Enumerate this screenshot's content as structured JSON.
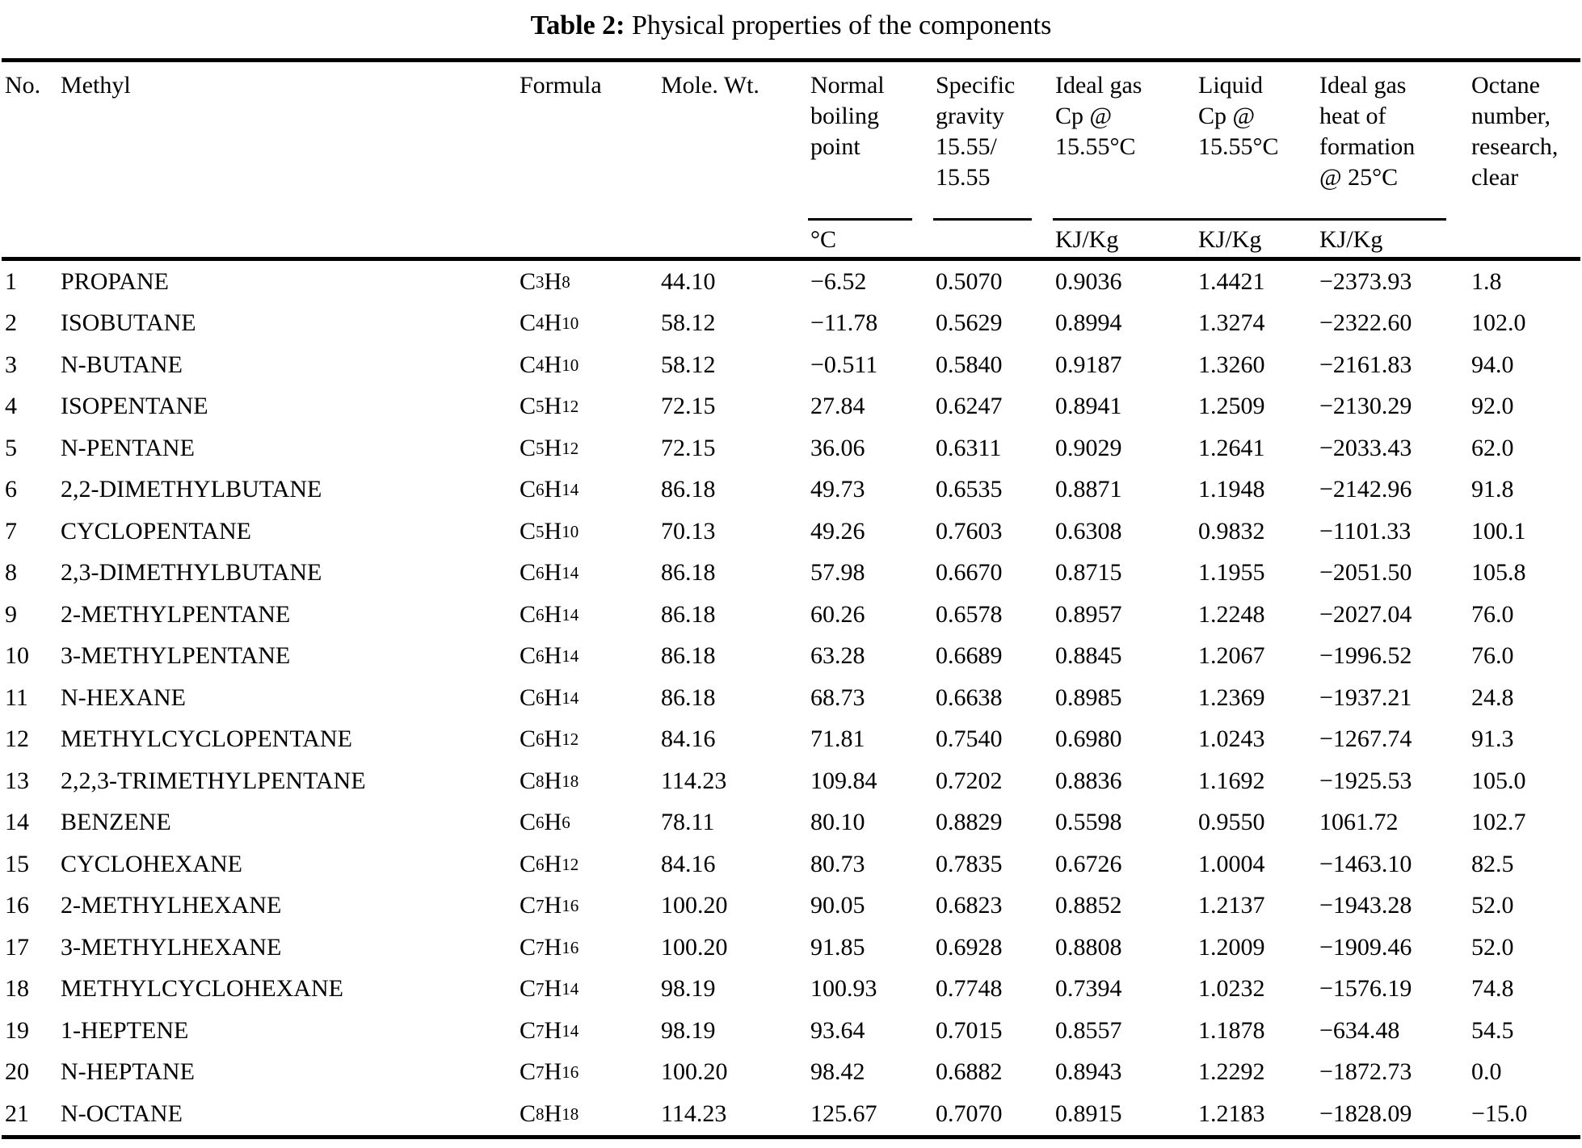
{
  "title": {
    "prefix": "Table 2:",
    "text": "Physical properties of the components"
  },
  "table": {
    "columns": [
      {
        "id": "no",
        "label": "No."
      },
      {
        "id": "name",
        "label": "Methyl"
      },
      {
        "id": "formula",
        "label": "Formula"
      },
      {
        "id": "mole_wt",
        "label": "Mole. Wt."
      },
      {
        "id": "boiling_point",
        "label_lines": [
          "Normal",
          "boiling",
          "point"
        ],
        "unit": "°C"
      },
      {
        "id": "specific_gravity",
        "label_lines": [
          "Specific",
          "gravity",
          "15.55/",
          "15.55"
        ],
        "unit": ""
      },
      {
        "id": "ideal_gas_cp",
        "label_lines": [
          "Ideal gas",
          "Cp @",
          "15.55°C"
        ],
        "unit": "KJ/Kg"
      },
      {
        "id": "liquid_cp",
        "label_lines": [
          "Liquid",
          "Cp @",
          "15.55°C"
        ],
        "unit": "KJ/Kg"
      },
      {
        "id": "heat_of_formation",
        "label_lines": [
          "Ideal gas",
          "heat of",
          "formation",
          "@ 25°C"
        ],
        "unit": "KJ/Kg"
      },
      {
        "id": "octane",
        "label_lines": [
          "Octane",
          "number,",
          "research,",
          "clear"
        ],
        "unit": ""
      }
    ],
    "rows": [
      {
        "no": "1",
        "name": "PROPANE",
        "formula": "C3H8",
        "mole_wt": "44.10",
        "boiling_point": "−6.52",
        "specific_gravity": "0.5070",
        "ideal_gas_cp": "0.9036",
        "liquid_cp": "1.4421",
        "heat_of_formation": "−2373.93",
        "octane": "1.8"
      },
      {
        "no": "2",
        "name": "ISOBUTANE",
        "formula": "C4H10",
        "mole_wt": "58.12",
        "boiling_point": "−11.78",
        "specific_gravity": "0.5629",
        "ideal_gas_cp": "0.8994",
        "liquid_cp": "1.3274",
        "heat_of_formation": "−2322.60",
        "octane": "102.0"
      },
      {
        "no": "3",
        "name": "N-BUTANE",
        "formula": "C4H10",
        "mole_wt": "58.12",
        "boiling_point": "−0.511",
        "specific_gravity": "0.5840",
        "ideal_gas_cp": "0.9187",
        "liquid_cp": "1.3260",
        "heat_of_formation": "−2161.83",
        "octane": "94.0"
      },
      {
        "no": "4",
        "name": "ISOPENTANE",
        "formula": "C5H12",
        "mole_wt": "72.15",
        "boiling_point": "27.84",
        "specific_gravity": "0.6247",
        "ideal_gas_cp": "0.8941",
        "liquid_cp": "1.2509",
        "heat_of_formation": "−2130.29",
        "octane": "92.0"
      },
      {
        "no": "5",
        "name": "N-PENTANE",
        "formula": "C5H12",
        "mole_wt": "72.15",
        "boiling_point": "36.06",
        "specific_gravity": "0.6311",
        "ideal_gas_cp": "0.9029",
        "liquid_cp": "1.2641",
        "heat_of_formation": "−2033.43",
        "octane": "62.0"
      },
      {
        "no": "6",
        "name": "2,2-DIMETHYLBUTANE",
        "formula": "C6H14",
        "mole_wt": "86.18",
        "boiling_point": "49.73",
        "specific_gravity": "0.6535",
        "ideal_gas_cp": "0.8871",
        "liquid_cp": "1.1948",
        "heat_of_formation": "−2142.96",
        "octane": "91.8"
      },
      {
        "no": "7",
        "name": "CYCLOPENTANE",
        "formula": "C5H10",
        "mole_wt": "70.13",
        "boiling_point": "49.26",
        "specific_gravity": "0.7603",
        "ideal_gas_cp": "0.6308",
        "liquid_cp": "0.9832",
        "heat_of_formation": "−1101.33",
        "octane": "100.1"
      },
      {
        "no": "8",
        "name": "2,3-DIMETHYLBUTANE",
        "formula": "C6H14",
        "mole_wt": "86.18",
        "boiling_point": "57.98",
        "specific_gravity": "0.6670",
        "ideal_gas_cp": "0.8715",
        "liquid_cp": "1.1955",
        "heat_of_formation": "−2051.50",
        "octane": "105.8"
      },
      {
        "no": "9",
        "name": "2-METHYLPENTANE",
        "formula": "C6H14",
        "mole_wt": "86.18",
        "boiling_point": "60.26",
        "specific_gravity": "0.6578",
        "ideal_gas_cp": "0.8957",
        "liquid_cp": "1.2248",
        "heat_of_formation": "−2027.04",
        "octane": "76.0"
      },
      {
        "no": "10",
        "name": "3-METHYLPENTANE",
        "formula": "C6H14",
        "mole_wt": "86.18",
        "boiling_point": "63.28",
        "specific_gravity": "0.6689",
        "ideal_gas_cp": "0.8845",
        "liquid_cp": "1.2067",
        "heat_of_formation": "−1996.52",
        "octane": "76.0"
      },
      {
        "no": "11",
        "name": "N-HEXANE",
        "formula": "C6H14",
        "mole_wt": "86.18",
        "boiling_point": "68.73",
        "specific_gravity": "0.6638",
        "ideal_gas_cp": "0.8985",
        "liquid_cp": "1.2369",
        "heat_of_formation": "−1937.21",
        "octane": "24.8"
      },
      {
        "no": "12",
        "name": "METHYLCYCLOPENTANE",
        "formula": "C6H12",
        "mole_wt": "84.16",
        "boiling_point": "71.81",
        "specific_gravity": "0.7540",
        "ideal_gas_cp": "0.6980",
        "liquid_cp": "1.0243",
        "heat_of_formation": "−1267.74",
        "octane": "91.3"
      },
      {
        "no": "13",
        "name": "2,2,3-TRIMETHYLPENTANE",
        "formula": "C8H18",
        "mole_wt": "114.23",
        "boiling_point": "109.84",
        "specific_gravity": "0.7202",
        "ideal_gas_cp": "0.8836",
        "liquid_cp": "1.1692",
        "heat_of_formation": "−1925.53",
        "octane": "105.0"
      },
      {
        "no": "14",
        "name": "BENZENE",
        "formula": "C6H6",
        "mole_wt": "78.11",
        "boiling_point": "80.10",
        "specific_gravity": "0.8829",
        "ideal_gas_cp": "0.5598",
        "liquid_cp": "0.9550",
        "heat_of_formation": "1061.72",
        "octane": "102.7"
      },
      {
        "no": "15",
        "name": "CYCLOHEXANE",
        "formula": "C6H12",
        "mole_wt": "84.16",
        "boiling_point": "80.73",
        "specific_gravity": "0.7835",
        "ideal_gas_cp": "0.6726",
        "liquid_cp": "1.0004",
        "heat_of_formation": "−1463.10",
        "octane": "82.5"
      },
      {
        "no": "16",
        "name": "2-METHYLHEXANE",
        "formula": "C7H16",
        "mole_wt": "100.20",
        "boiling_point": "90.05",
        "specific_gravity": "0.6823",
        "ideal_gas_cp": "0.8852",
        "liquid_cp": "1.2137",
        "heat_of_formation": "−1943.28",
        "octane": "52.0"
      },
      {
        "no": "17",
        "name": "3-METHYLHEXANE",
        "formula": "C7H16",
        "mole_wt": "100.20",
        "boiling_point": "91.85",
        "specific_gravity": "0.6928",
        "ideal_gas_cp": "0.8808",
        "liquid_cp": "1.2009",
        "heat_of_formation": "−1909.46",
        "octane": "52.0"
      },
      {
        "no": "18",
        "name": "METHYLCYCLOHEXANE",
        "formula": "C7H14",
        "mole_wt": "98.19",
        "boiling_point": "100.93",
        "specific_gravity": "0.7748",
        "ideal_gas_cp": "0.7394",
        "liquid_cp": "1.0232",
        "heat_of_formation": "−1576.19",
        "octane": "74.8"
      },
      {
        "no": "19",
        "name": "1-HEPTENE",
        "formula": "C7H14",
        "mole_wt": "98.19",
        "boiling_point": "93.64",
        "specific_gravity": "0.7015",
        "ideal_gas_cp": "0.8557",
        "liquid_cp": "1.1878",
        "heat_of_formation": "−634.48",
        "octane": "54.5"
      },
      {
        "no": "20",
        "name": "N-HEPTANE",
        "formula": "C7H16",
        "mole_wt": "100.20",
        "boiling_point": "98.42",
        "specific_gravity": "0.6882",
        "ideal_gas_cp": "0.8943",
        "liquid_cp": "1.2292",
        "heat_of_formation": "−1872.73",
        "octane": "0.0"
      },
      {
        "no": "21",
        "name": "N-OCTANE",
        "formula": "C8H18",
        "mole_wt": "114.23",
        "boiling_point": "125.67",
        "specific_gravity": "0.7070",
        "ideal_gas_cp": "0.8915",
        "liquid_cp": "1.2183",
        "heat_of_formation": "−1828.09",
        "octane": "−15.0"
      }
    ]
  }
}
